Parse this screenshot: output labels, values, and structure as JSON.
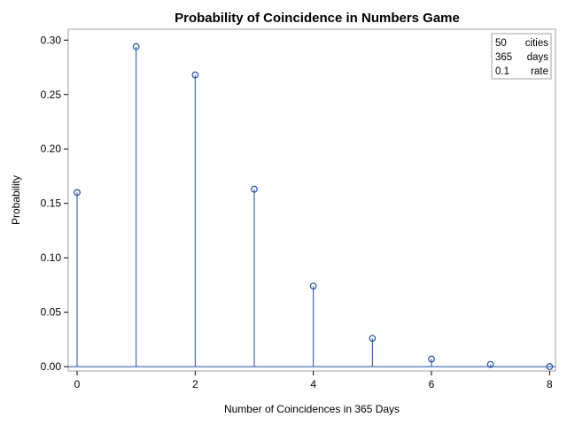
{
  "chart_data": {
    "type": "needle",
    "title": "Probability of Coincidence in Numbers Game",
    "xlabel": "Number of Coincidences in 365 Days",
    "ylabel": "Probability",
    "xlim": [
      -0.15,
      8.1
    ],
    "ylim": [
      -0.004,
      0.31
    ],
    "xticks": [
      0,
      2,
      4,
      6,
      8
    ],
    "xtick_labels": [
      "0",
      "2",
      "4",
      "6",
      "8"
    ],
    "yticks": [
      0.0,
      0.05,
      0.1,
      0.15,
      0.2,
      0.25,
      0.3
    ],
    "ytick_labels": [
      "0.00",
      "0.05",
      "0.10",
      "0.15",
      "0.20",
      "0.25",
      "0.30"
    ],
    "grid": false,
    "x": [
      0,
      1,
      2,
      3,
      4,
      5,
      6,
      7,
      8
    ],
    "y": [
      0.16,
      0.294,
      0.268,
      0.163,
      0.074,
      0.026,
      0.007,
      0.002,
      0.0
    ],
    "colors": {
      "series": "#1f4fa0",
      "frame": "#a0a0a0"
    },
    "inset": {
      "placement": "top-right",
      "rows": [
        {
          "value": "50",
          "label": "cities"
        },
        {
          "value": "365",
          "label": "days"
        },
        {
          "value": "0.1",
          "label": "rate"
        }
      ]
    }
  }
}
